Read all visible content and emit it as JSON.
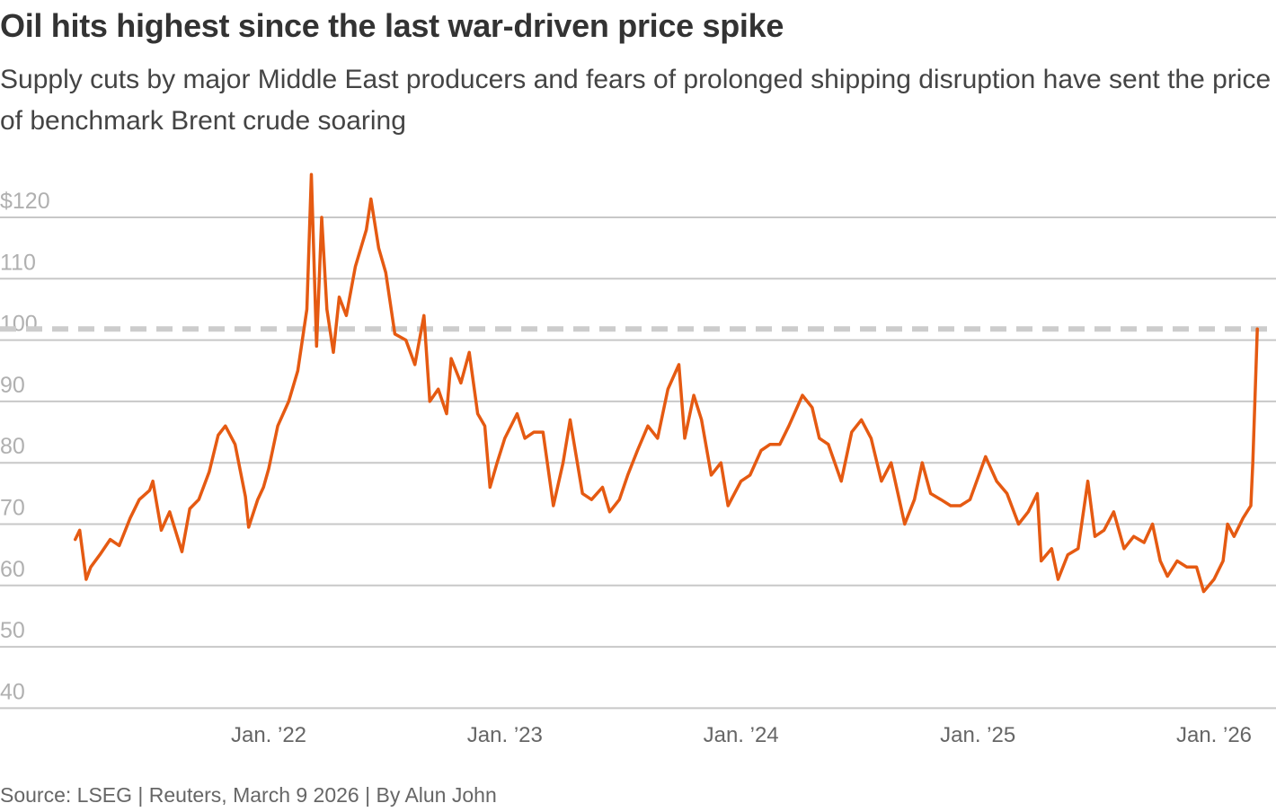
{
  "title": "Oil hits highest since the last war-driven price spike",
  "subtitle": "Supply cuts by major Middle East producers and fears of prolonged shipping disruption have sent the price of benchmark Brent crude soaring",
  "source": "Source: LSEG | Reuters, March 9 2026 | By Alun John",
  "chart_data": {
    "type": "line",
    "title": "Oil hits highest since the last war-driven price spike",
    "xlabel": "",
    "ylabel": "",
    "ylim": [
      40,
      127
    ],
    "yticks": [
      40,
      50,
      60,
      70,
      80,
      90,
      100,
      110,
      120
    ],
    "ytick_labels": [
      "40",
      "50",
      "60",
      "70",
      "80",
      "90",
      "100",
      "110",
      "$120"
    ],
    "xticks": [
      "2022-01-01",
      "2023-01-01",
      "2024-01-01",
      "2025-01-01",
      "2026-01-01"
    ],
    "xtick_labels": [
      "Jan. ’22",
      "Jan. ’23",
      "Jan. ’24",
      "Jan. ’25",
      "Jan. ’26"
    ],
    "xlim": [
      "2021-03-08",
      "2026-03-09"
    ],
    "grid": true,
    "line_color": "#E55A12",
    "grid_color": "#c8c8c8",
    "reference_line": {
      "value": 101.8,
      "style": "dashed",
      "color": "#cccccc"
    },
    "series": [
      {
        "x": [
          "2021-03-08",
          "2021-03-15",
          "2021-03-25",
          "2021-04-01",
          "2021-04-15",
          "2021-05-01",
          "2021-05-15",
          "2021-06-01",
          "2021-06-15",
          "2021-07-01",
          "2021-07-06",
          "2021-07-19",
          "2021-08-01",
          "2021-08-20",
          "2021-09-01",
          "2021-09-15",
          "2021-10-01",
          "2021-10-15",
          "2021-10-26",
          "2021-11-10",
          "2021-11-26",
          "2021-12-01",
          "2021-12-15",
          "2021-12-24",
          "2022-01-01",
          "2022-01-15",
          "2022-02-01",
          "2022-02-15",
          "2022-03-01",
          "2022-03-08",
          "2022-03-16",
          "2022-03-24",
          "2022-04-01",
          "2022-04-11",
          "2022-04-20",
          "2022-05-01",
          "2022-05-15",
          "2022-06-01",
          "2022-06-08",
          "2022-06-20",
          "2022-07-01",
          "2022-07-15",
          "2022-08-01",
          "2022-08-15",
          "2022-08-29",
          "2022-09-07",
          "2022-09-20",
          "2022-10-03",
          "2022-10-10",
          "2022-10-25",
          "2022-11-07",
          "2022-11-20",
          "2022-12-01",
          "2022-12-09",
          "2022-12-20",
          "2023-01-01",
          "2023-01-20",
          "2023-02-01",
          "2023-02-15",
          "2023-03-01",
          "2023-03-17",
          "2023-04-01",
          "2023-04-12",
          "2023-05-01",
          "2023-05-15",
          "2023-06-01",
          "2023-06-12",
          "2023-06-27",
          "2023-07-10",
          "2023-07-25",
          "2023-08-10",
          "2023-08-25",
          "2023-09-10",
          "2023-09-27",
          "2023-10-06",
          "2023-10-20",
          "2023-11-01",
          "2023-11-16",
          "2023-12-01",
          "2023-12-12",
          "2024-01-01",
          "2024-01-15",
          "2024-02-01",
          "2024-02-15",
          "2024-03-01",
          "2024-03-15",
          "2024-04-05",
          "2024-04-20",
          "2024-05-01",
          "2024-05-15",
          "2024-06-04",
          "2024-06-20",
          "2024-07-05",
          "2024-07-20",
          "2024-08-05",
          "2024-08-20",
          "2024-09-10",
          "2024-09-25",
          "2024-10-07",
          "2024-10-20",
          "2024-11-05",
          "2024-11-20",
          "2024-12-05",
          "2024-12-20",
          "2025-01-13",
          "2025-01-30",
          "2025-02-15",
          "2025-03-05",
          "2025-03-20",
          "2025-04-03",
          "2025-04-09",
          "2025-04-25",
          "2025-05-05",
          "2025-05-20",
          "2025-06-05",
          "2025-06-20",
          "2025-07-01",
          "2025-07-15",
          "2025-07-30",
          "2025-08-15",
          "2025-08-30",
          "2025-09-15",
          "2025-09-28",
          "2025-10-10",
          "2025-10-21",
          "2025-11-05",
          "2025-11-20",
          "2025-12-05",
          "2025-12-16",
          "2026-01-01",
          "2026-01-15",
          "2026-01-22",
          "2026-02-01",
          "2026-02-15",
          "2026-02-27",
          "2026-03-02",
          "2026-03-09"
        ],
        "y": [
          67.5,
          69,
          61,
          63,
          65,
          67.5,
          66.5,
          71,
          74,
          75.5,
          77,
          69,
          72,
          65.5,
          72.5,
          74,
          78.5,
          84.5,
          86,
          83,
          74.5,
          69.5,
          74,
          76,
          79,
          86,
          90,
          95,
          105,
          127,
          99,
          120,
          105,
          98,
          107,
          104,
          112,
          118,
          123,
          115,
          111,
          101,
          100,
          96,
          104,
          90,
          92,
          88,
          97,
          93,
          98,
          88,
          86,
          76,
          80,
          84,
          88,
          84,
          85,
          85,
          73,
          80,
          87,
          75,
          74,
          76,
          72,
          74,
          78,
          82,
          86,
          84,
          92,
          96,
          84,
          91,
          87,
          78,
          80,
          73,
          77,
          78,
          82,
          83,
          83,
          86,
          91,
          89,
          84,
          83,
          77,
          85,
          87,
          84,
          77,
          80,
          70,
          74,
          80,
          75,
          74,
          73,
          73,
          74,
          81,
          77,
          75,
          70,
          72,
          75,
          64,
          66,
          61,
          65,
          66,
          77,
          68,
          69,
          72,
          66,
          68,
          67,
          70,
          64,
          61.5,
          64,
          63,
          63,
          59,
          61,
          64,
          70,
          68,
          71,
          73,
          80,
          101.8
        ]
      }
    ]
  }
}
